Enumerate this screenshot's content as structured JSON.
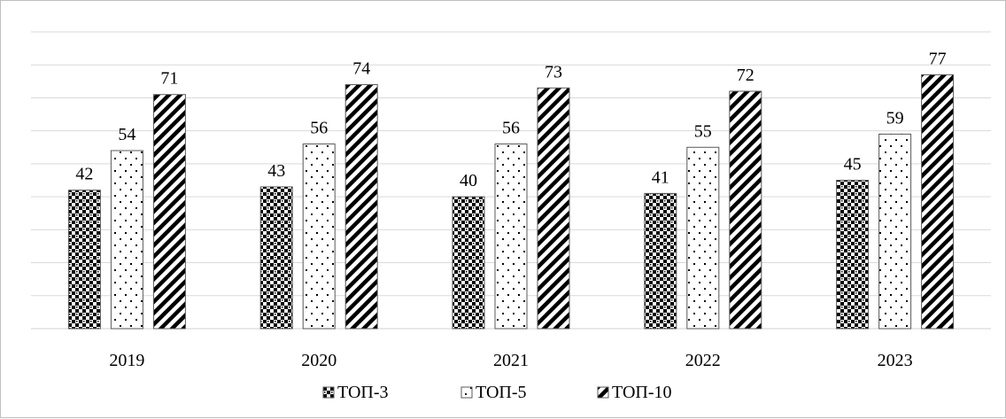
{
  "chart_data": {
    "type": "bar",
    "categories": [
      "2019",
      "2020",
      "2021",
      "2022",
      "2023"
    ],
    "series": [
      {
        "name": "ТОП-3",
        "values": [
          42,
          43,
          40,
          41,
          45
        ],
        "pattern": "checker"
      },
      {
        "name": "ТОП-5",
        "values": [
          54,
          56,
          56,
          55,
          59
        ],
        "pattern": "dots"
      },
      {
        "name": "ТОП-10",
        "values": [
          71,
          74,
          73,
          72,
          77
        ],
        "pattern": "diagonal"
      }
    ],
    "ylim": [
      0,
      90
    ],
    "grid": true,
    "axis_tick_labels_shown": false,
    "data_labels": true,
    "legend_position": "bottom",
    "colors": {
      "bar_fill": "#000000",
      "bar_background": "#ffffff",
      "grid": "#d9d9d9",
      "frame": "#bfbfbf"
    }
  }
}
